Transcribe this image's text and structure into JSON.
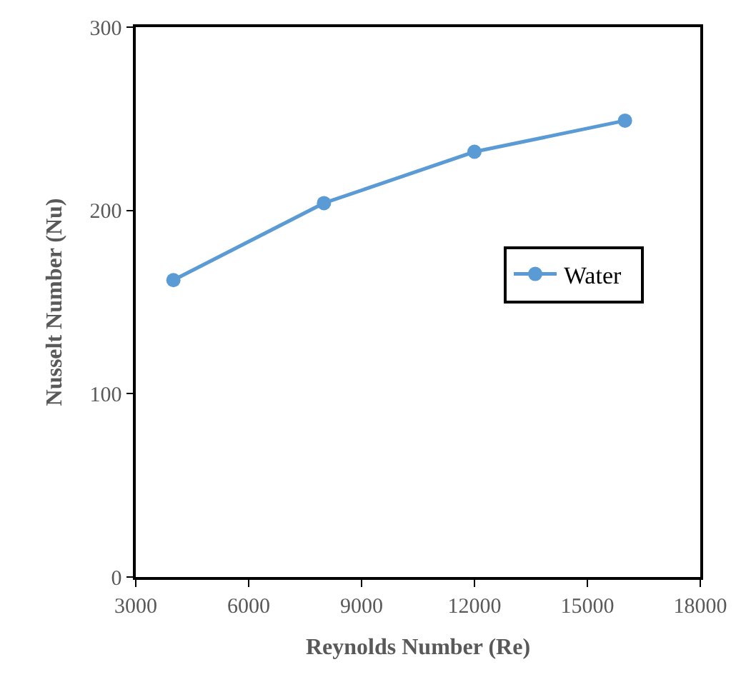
{
  "chart_data": {
    "type": "line",
    "xlabel": "Reynolds Number (Re)",
    "ylabel": "Nusselt Number (Nu)",
    "x": [
      4000,
      8000,
      12000,
      16000
    ],
    "series": [
      {
        "name": "Water",
        "color": "#5b9bd5",
        "values": [
          162,
          204,
          232,
          249
        ]
      }
    ],
    "xlim": [
      3000,
      18000
    ],
    "xticks": [
      3000,
      6000,
      9000,
      12000,
      15000,
      18000
    ],
    "ylim": [
      0,
      300
    ],
    "yticks": [
      0,
      100,
      200,
      300
    ],
    "legend": "right",
    "marker": "circle",
    "line_style": "solid"
  }
}
